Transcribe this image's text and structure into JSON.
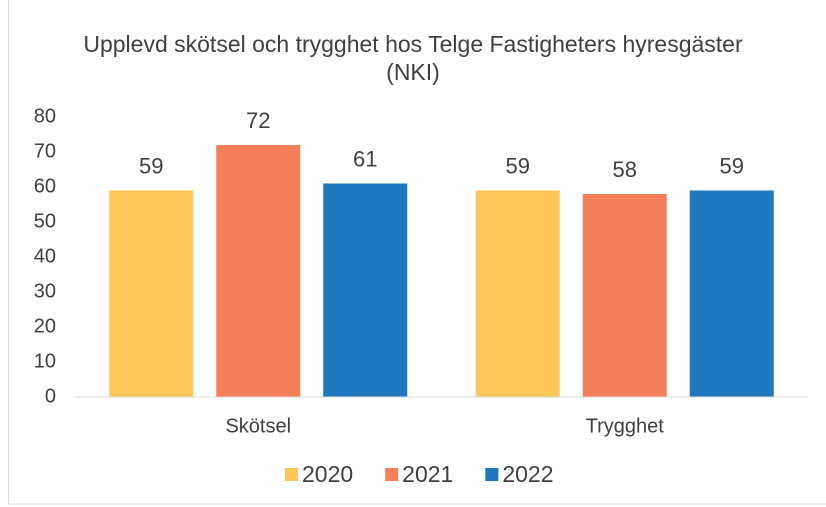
{
  "chart_data": {
    "type": "bar",
    "title": "Upplevd skötsel och trygghet hos Telge Fastigheters hyresgäster (NKI)",
    "categories": [
      "Skötsel",
      "Trygghet"
    ],
    "series": [
      {
        "name": "2020",
        "color": "#FFC65C",
        "values": [
          59,
          59
        ]
      },
      {
        "name": "2021",
        "color": "#F57F5B",
        "values": [
          72,
          58
        ]
      },
      {
        "name": "2022",
        "color": "#1F77BD",
        "values": [
          61,
          59
        ]
      }
    ],
    "ylim": [
      0,
      80
    ],
    "yticks": [
      0,
      10,
      20,
      30,
      40,
      50,
      60,
      70,
      80
    ],
    "grid": false,
    "legend": "bottom"
  }
}
